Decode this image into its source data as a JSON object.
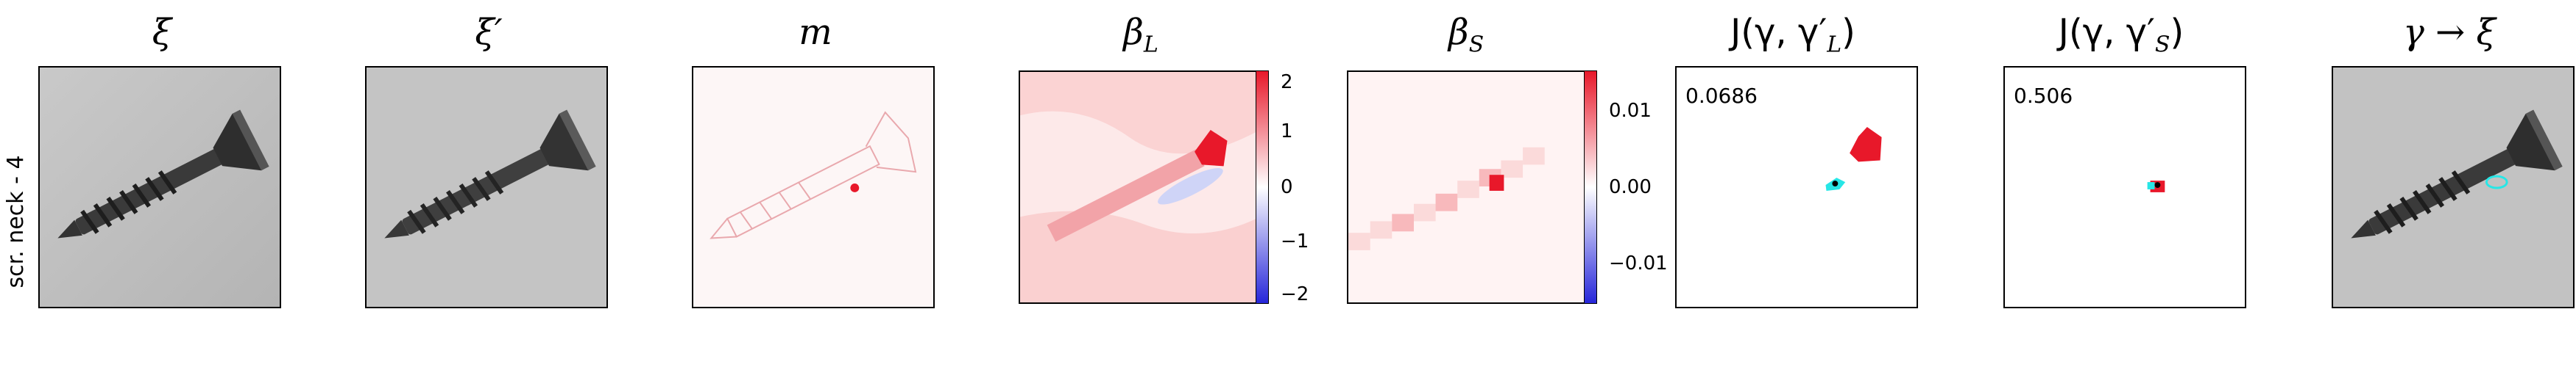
{
  "row_label": "scr. neck - 4",
  "titles": {
    "xi": "ξ",
    "xi_prime": "ξ′",
    "m": "m",
    "beta_L": "β",
    "beta_L_sub": "L",
    "beta_S": "β",
    "beta_S_sub": "S",
    "j_L": "J(γ, γ′",
    "j_L_sub": "L",
    "j_L_close": ")",
    "j_S": "J(γ, γ′",
    "j_S_sub": "S",
    "j_S_close": ")",
    "gamma_xi": "γ → ξ"
  },
  "colorbar_L": {
    "ticks": [
      "2",
      "1",
      "0",
      "−1",
      "−2"
    ]
  },
  "colorbar_S": {
    "ticks": [
      "0.01",
      "0.00",
      "−0.01"
    ]
  },
  "scores": {
    "j_L": "0.0686",
    "j_S": "0.506"
  },
  "colors": {
    "red": "#e8182a",
    "blue": "#2626d9",
    "cyan": "#27e6e6",
    "gray": "#bdbdbd"
  }
}
